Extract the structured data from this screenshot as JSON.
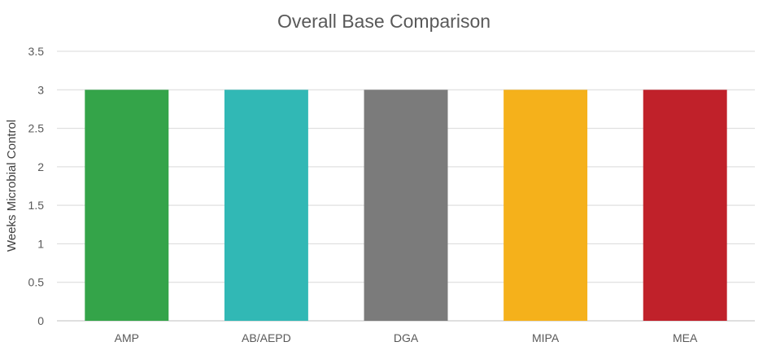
{
  "chart_data": {
    "type": "bar",
    "title": "Overall Base Comparison",
    "xlabel": "",
    "ylabel": "Weeks Microbial Control",
    "categories": [
      "AMP",
      "AB/AEPD",
      "DGA",
      "MIPA",
      "MEA"
    ],
    "values": [
      3,
      3,
      3,
      3,
      3
    ],
    "colors": [
      "#34a449",
      "#31b8b5",
      "#7b7b7b",
      "#f5b11b",
      "#c0212a"
    ],
    "ylim": [
      0,
      3.5
    ],
    "yticks": [
      "0",
      "0.5",
      "1",
      "1.5",
      "2",
      "2.5",
      "3",
      "3.5"
    ],
    "grid": true,
    "legend": "none"
  }
}
